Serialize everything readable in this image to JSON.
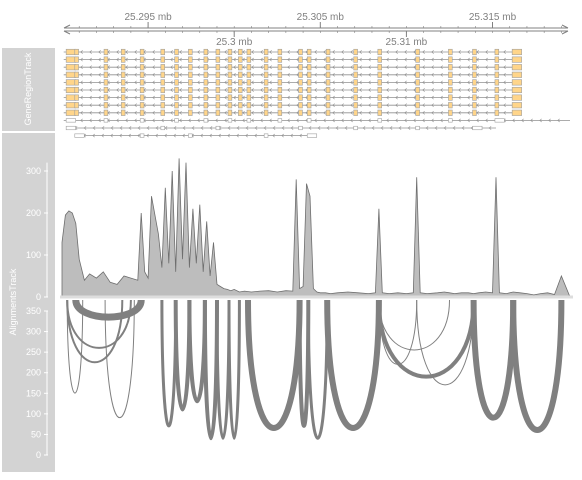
{
  "chart_data": {
    "type": "area",
    "title": "",
    "axis": {
      "unit": "mb",
      "xlim": [
        25.29,
        25.3195
      ],
      "ticks_top": [
        {
          "value": 25.295,
          "label": "25.295 mb"
        },
        {
          "value": 25.305,
          "label": "25.305 mb"
        },
        {
          "value": 25.315,
          "label": "25.315 mb"
        }
      ],
      "ticks_bottom": [
        {
          "value": 25.3,
          "label": "25.3 mb"
        },
        {
          "value": 25.31,
          "label": "25.31 mb"
        }
      ]
    },
    "gene_track": {
      "title": "GeneRegionTrack",
      "exons": [
        25.2903,
        25.2908,
        25.2925,
        25.2935,
        25.2946,
        25.2958,
        25.2966,
        25.2974,
        25.2983,
        25.299,
        25.2997,
        25.3003,
        25.3008,
        25.3018,
        25.3026,
        25.3038,
        25.3043,
        25.3054,
        25.307,
        25.3084,
        25.3106,
        25.3125,
        25.3139,
        25.3152,
        25.3162
      ],
      "transcripts": [
        {
          "start": 25.2901,
          "end": 25.3162,
          "exon_set": "full"
        },
        {
          "start": 25.2901,
          "end": 25.3162,
          "exon_set": "full"
        },
        {
          "start": 25.2901,
          "end": 25.3162,
          "exon_set": "full"
        },
        {
          "start": 25.2901,
          "end": 25.3162,
          "exon_set": "full"
        },
        {
          "start": 25.2901,
          "end": 25.3162,
          "exon_set": "full"
        },
        {
          "start": 25.2901,
          "end": 25.3162,
          "exon_set": "full"
        },
        {
          "start": 25.2901,
          "end": 25.3162,
          "exon_set": "full"
        },
        {
          "start": 25.2901,
          "end": 25.3162,
          "exon_set": "full"
        },
        {
          "start": 25.2901,
          "end": 25.3162,
          "exon_set": "full"
        },
        {
          "start": 25.2901,
          "end": 25.3195,
          "exon_set": "partial"
        },
        {
          "start": 25.2903,
          "end": 25.3152,
          "exon_set": "partial2"
        },
        {
          "start": 25.2908,
          "end": 25.3044,
          "exon_set": "partial3"
        }
      ]
    },
    "coverage_track": {
      "title": "AlignmentsTrack",
      "ylabel": "",
      "ylim": [
        0,
        350
      ],
      "yticks": [
        0,
        100,
        200,
        300
      ],
      "x": [
        25.29,
        25.2902,
        25.2904,
        25.2906,
        25.2908,
        25.291,
        25.2913,
        25.2916,
        25.292,
        25.2924,
        25.2928,
        25.2932,
        25.2936,
        25.294,
        25.2944,
        25.2946,
        25.2948,
        25.295,
        25.2952,
        25.2956,
        25.2958,
        25.296,
        25.2962,
        25.2964,
        25.2966,
        25.2968,
        25.297,
        25.2972,
        25.2974,
        25.2976,
        25.2978,
        25.298,
        25.2982,
        25.2984,
        25.2986,
        25.2988,
        25.299,
        25.2992,
        25.2994,
        25.2996,
        25.2998,
        25.3,
        25.3003,
        25.3006,
        25.301,
        25.3015,
        25.302,
        25.3025,
        25.303,
        25.3034,
        25.3036,
        25.3038,
        25.304,
        25.3042,
        25.3044,
        25.3046,
        25.3048,
        25.305,
        25.3053,
        25.3056,
        25.306,
        25.3066,
        25.3072,
        25.3078,
        25.3082,
        25.3084,
        25.3086,
        25.309,
        25.3095,
        25.31,
        25.3104,
        25.3106,
        25.3108,
        25.3112,
        25.3118,
        25.3122,
        25.3125,
        25.3128,
        25.3132,
        25.3136,
        25.3139,
        25.3142,
        25.3146,
        25.315,
        25.3152,
        25.3154,
        25.3158,
        25.3162,
        25.3166,
        25.317,
        25.3174,
        25.3178,
        25.3182,
        25.3186,
        25.319,
        25.3195
      ],
      "y": [
        130,
        195,
        205,
        200,
        175,
        90,
        40,
        55,
        45,
        60,
        35,
        30,
        50,
        45,
        40,
        200,
        60,
        45,
        240,
        150,
        70,
        260,
        80,
        300,
        60,
        330,
        90,
        320,
        70,
        210,
        80,
        220,
        60,
        180,
        50,
        130,
        30,
        25,
        20,
        18,
        15,
        18,
        12,
        14,
        12,
        14,
        15,
        12,
        15,
        14,
        280,
        20,
        25,
        270,
        240,
        20,
        12,
        10,
        10,
        8,
        10,
        12,
        10,
        8,
        10,
        210,
        10,
        8,
        10,
        8,
        10,
        285,
        10,
        8,
        10,
        12,
        10,
        8,
        10,
        10,
        8,
        10,
        12,
        10,
        285,
        10,
        8,
        12,
        10,
        8,
        5,
        8,
        10,
        6,
        50,
        0
      ]
    },
    "sashimi_track": {
      "ylim": [
        0,
        350
      ],
      "yticks": [
        0,
        50,
        100,
        150,
        200,
        250,
        300,
        350
      ],
      "arcs": [
        {
          "start": 25.2903,
          "end": 25.2912,
          "count": 150,
          "weight": 1
        },
        {
          "start": 25.2903,
          "end": 25.2935,
          "count": 225,
          "weight": 2
        },
        {
          "start": 25.2903,
          "end": 25.294,
          "count": 260,
          "weight": 2
        },
        {
          "start": 25.2908,
          "end": 25.2946,
          "count": 335,
          "weight": 7
        },
        {
          "start": 25.2925,
          "end": 25.2942,
          "count": 90,
          "weight": 1
        },
        {
          "start": 25.2958,
          "end": 25.2966,
          "count": 70,
          "weight": 3
        },
        {
          "start": 25.2966,
          "end": 25.2974,
          "count": 110,
          "weight": 4
        },
        {
          "start": 25.2974,
          "end": 25.2983,
          "count": 130,
          "weight": 4
        },
        {
          "start": 25.2983,
          "end": 25.299,
          "count": 40,
          "weight": 4
        },
        {
          "start": 25.299,
          "end": 25.2997,
          "count": 40,
          "weight": 3
        },
        {
          "start": 25.2997,
          "end": 25.3003,
          "count": 40,
          "weight": 3
        },
        {
          "start": 25.3008,
          "end": 25.3038,
          "count": 65,
          "weight": 6
        },
        {
          "start": 25.3038,
          "end": 25.3043,
          "count": 70,
          "weight": 4
        },
        {
          "start": 25.3043,
          "end": 25.3054,
          "count": 40,
          "weight": 3
        },
        {
          "start": 25.3054,
          "end": 25.3084,
          "count": 65,
          "weight": 6
        },
        {
          "start": 25.3084,
          "end": 25.3106,
          "count": 220,
          "weight": 1
        },
        {
          "start": 25.3084,
          "end": 25.3125,
          "count": 255,
          "weight": 1
        },
        {
          "start": 25.3084,
          "end": 25.3139,
          "count": 190,
          "weight": 4
        },
        {
          "start": 25.3106,
          "end": 25.3139,
          "count": 170,
          "weight": 1
        },
        {
          "start": 25.3139,
          "end": 25.3162,
          "count": 90,
          "weight": 6
        },
        {
          "start": 25.3162,
          "end": 25.319,
          "count": 60,
          "weight": 6
        }
      ]
    },
    "colors": {
      "title_panel": "#d3d3d3",
      "exon_fill": "#ffd58a",
      "exon_stroke": "#a0a0a0",
      "coverage_fill": "#bdbdbd",
      "coverage_line": "#6e6e6e",
      "arc": "#808080",
      "axis": "#808080"
    }
  }
}
